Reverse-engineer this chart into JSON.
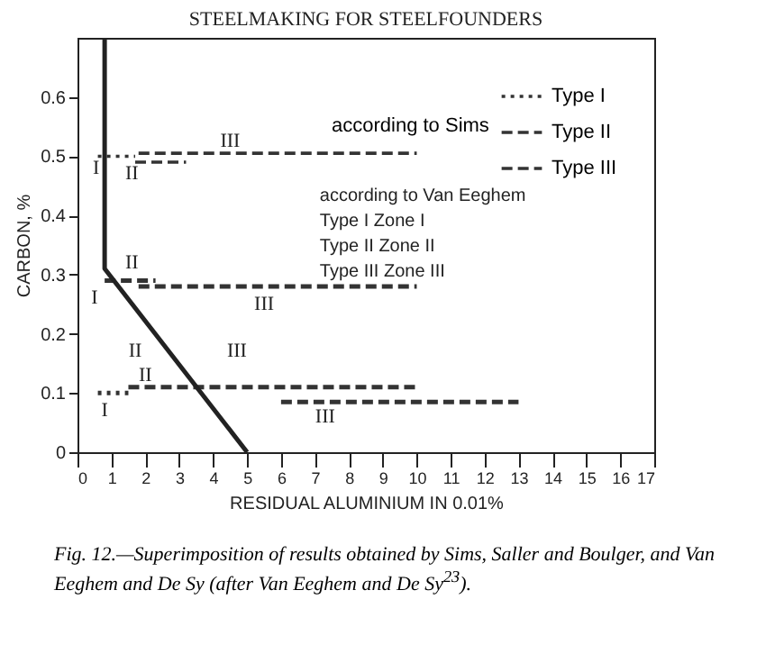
{
  "chart_data": {
    "type": "line",
    "title": "STEELMAKING FOR STEELFOUNDERS",
    "xlabel": "RESIDUAL ALUMINIUM IN 0.01%",
    "ylabel": "CARBON, %",
    "xlim": [
      0,
      17
    ],
    "ylim": [
      0,
      0.7
    ],
    "xticks": [
      0,
      1,
      2,
      3,
      4,
      5,
      6,
      7,
      8,
      9,
      10,
      11,
      12,
      13,
      14,
      15,
      16,
      17
    ],
    "yticks": [
      0,
      0.1,
      0.2,
      0.3,
      0.4,
      0.5,
      0.6
    ],
    "grid": false,
    "legend": "top right",
    "legend_title": "according to Sims",
    "marker": "none",
    "series": [
      {
        "name": "Type I",
        "color": "#333333",
        "line_style": "dotted",
        "x": [
          0.6,
          1.7
        ],
        "values": [
          0.5,
          0.5
        ]
      },
      {
        "color": "#333333",
        "line_style": "dotted",
        "x": [
          0.6,
          1.5
        ],
        "values": [
          0.1,
          0.1
        ]
      },
      {
        "name": "Type II",
        "color": "#333333",
        "line_style": "dashed",
        "x": [
          1.7,
          3.2
        ],
        "values": [
          0.49,
          0.49
        ]
      },
      {
        "color": "#333333",
        "line_style": "dashed",
        "x": [
          0.8,
          2.3
        ],
        "values": [
          0.29,
          0.29
        ]
      },
      {
        "color": "#333333",
        "line_style": "dashed",
        "x": [
          1.5,
          10
        ],
        "values": [
          0.11,
          0.11
        ]
      },
      {
        "name": "Type III",
        "color": "#333333",
        "line_style": "dashed",
        "x": [
          1.8,
          10
        ],
        "values": [
          0.505,
          0.505
        ]
      },
      {
        "color": "#333333",
        "line_style": "dashed",
        "x": [
          1.8,
          10
        ],
        "values": [
          0.28,
          0.28
        ]
      },
      {
        "color": "#333333",
        "line_style": "dashed",
        "x": [
          6,
          13
        ],
        "values": [
          0.085,
          0.085
        ]
      },
      {
        "color": "#222222",
        "line_style": "solid",
        "x": [
          0.8,
          0.8,
          5
        ],
        "values": [
          0.7,
          0.31,
          0
        ]
      }
    ],
    "annotations": [
      "III",
      "II",
      "I",
      "II",
      "I",
      "III",
      "II",
      "III",
      "II",
      "I",
      "III",
      "according to Van Eeghem",
      "Type I   Zone I",
      "Type II   Zone II",
      "Type III   Zone III",
      "Fig. 12.—Superimposition of results obtained by Sims, Saller and Boulger, and Van Eeghem and De Sy (after Van Eeghem and De Sy$^{23}$)."
    ]
  }
}
